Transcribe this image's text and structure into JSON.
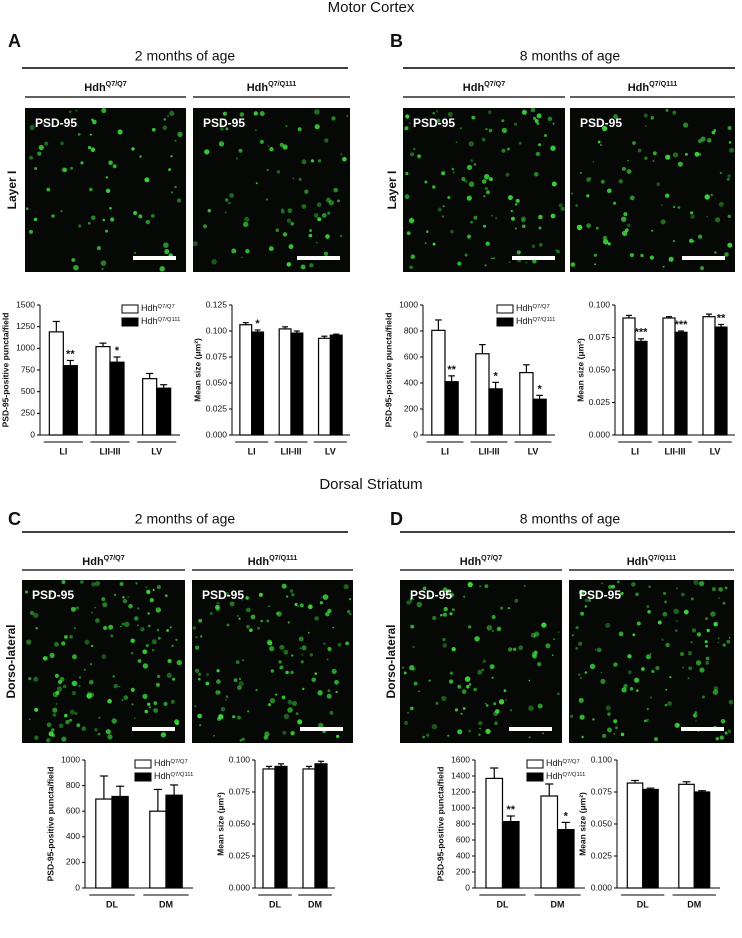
{
  "figure": {
    "sections": [
      {
        "title": "Motor Cortex"
      },
      {
        "title": "Dorsal Striatum"
      }
    ],
    "panels": [
      {
        "letter": "A",
        "age": "2 months of age",
        "region": "Layer I",
        "images": [
          {
            "genotype": "Hdh",
            "sup": "Q7/Q7",
            "stain": "PSD-95"
          },
          {
            "genotype": "Hdh",
            "sup": "Q7/Q111",
            "stain": "PSD-95"
          }
        ]
      },
      {
        "letter": "B",
        "age": "8 months of age",
        "region": "Layer I",
        "images": [
          {
            "genotype": "Hdh",
            "sup": "Q7/Q7",
            "stain": "PSD-95"
          },
          {
            "genotype": "Hdh",
            "sup": "Q7/Q111",
            "stain": "PSD-95"
          }
        ]
      },
      {
        "letter": "C",
        "age": "2 months of age",
        "region": "Dorso-lateral",
        "images": [
          {
            "genotype": "Hdh",
            "sup": "Q7/Q7",
            "stain": "PSD-95"
          },
          {
            "genotype": "Hdh",
            "sup": "Q7/Q111",
            "stain": "PSD-95"
          }
        ]
      },
      {
        "letter": "D",
        "age": "8 months of age",
        "region": "Dorso-lateral",
        "images": [
          {
            "genotype": "Hdh",
            "sup": "Q7/Q7",
            "stain": "PSD-95"
          },
          {
            "genotype": "Hdh",
            "sup": "Q7/Q111",
            "stain": "PSD-95"
          }
        ]
      }
    ]
  },
  "chart_data": [
    {
      "type": "bar",
      "ylabel": "PSD-95-positive puncta/field",
      "categories": [
        "LI",
        "LII-III",
        "LV"
      ],
      "series": [
        {
          "name": "Hdh",
          "name_sup": "Q7/Q7",
          "color": "#ffffff",
          "values": [
            1190,
            1020,
            650
          ],
          "errors": [
            120,
            40,
            60
          ],
          "stars": [
            null,
            null,
            null
          ]
        },
        {
          "name": "Hdh",
          "name_sup": "Q7/Q111",
          "color": "#000000",
          "values": [
            800,
            840,
            540
          ],
          "errors": [
            60,
            60,
            40
          ],
          "stars": [
            "**",
            "*",
            null
          ]
        }
      ],
      "ylim": [
        0,
        1500
      ],
      "yticks": [
        0,
        250,
        500,
        750,
        1000,
        1250,
        1500
      ],
      "legend": "top-right"
    },
    {
      "type": "bar",
      "ylabel": "Mean size (μm²)",
      "categories": [
        "LI",
        "LII-III",
        "LV"
      ],
      "series": [
        {
          "color": "#ffffff",
          "values": [
            0.106,
            0.102,
            0.093
          ],
          "errors": [
            0.002,
            0.002,
            0.002
          ],
          "stars": [
            null,
            null,
            null
          ]
        },
        {
          "color": "#000000",
          "values": [
            0.099,
            0.098,
            0.096
          ],
          "errors": [
            0.002,
            0.002,
            0.001
          ],
          "stars": [
            "*",
            null,
            null
          ]
        }
      ],
      "ylim": [
        0,
        0.125
      ],
      "yticks": [
        {
          "value": 0,
          "label": "0.000"
        },
        {
          "value": 0.025,
          "label": "0.025"
        },
        {
          "value": 0.05,
          "label": "0.050"
        },
        {
          "value": 0.075,
          "label": "0.075"
        },
        {
          "value": 0.1,
          "label": "0.100"
        },
        {
          "value": 0.125,
          "label": "0.125"
        }
      ]
    },
    {
      "type": "bar",
      "ylabel": "PSD-95-positive puncta/field",
      "categories": [
        "LI",
        "LII-III",
        "LV"
      ],
      "series": [
        {
          "name": "Hdh",
          "name_sup": "Q7/Q7",
          "color": "#ffffff",
          "values": [
            805,
            625,
            480
          ],
          "errors": [
            80,
            70,
            60
          ],
          "stars": [
            null,
            null,
            null
          ]
        },
        {
          "name": "Hdh",
          "name_sup": "Q7/Q111",
          "color": "#000000",
          "values": [
            410,
            355,
            275
          ],
          "errors": [
            45,
            50,
            30
          ],
          "stars": [
            "**",
            "*",
            "*"
          ]
        }
      ],
      "ylim": [
        0,
        1000
      ],
      "yticks": [
        0,
        200,
        400,
        600,
        800,
        1000
      ],
      "legend": "top-right"
    },
    {
      "type": "bar",
      "ylabel": "Mean size (μm²)",
      "categories": [
        "LI",
        "LII-III",
        "LV"
      ],
      "series": [
        {
          "color": "#ffffff",
          "values": [
            0.09,
            0.09,
            0.091
          ],
          "errors": [
            0.002,
            0.001,
            0.002
          ],
          "stars": [
            null,
            null,
            null
          ]
        },
        {
          "color": "#000000",
          "values": [
            0.072,
            0.079,
            0.083
          ],
          "errors": [
            0.002,
            0.001,
            0.002
          ],
          "stars": [
            "***",
            "***",
            "**"
          ]
        }
      ],
      "ylim": [
        0,
        0.1
      ],
      "yticks": [
        {
          "value": 0,
          "label": "0.000"
        },
        {
          "value": 0.025,
          "label": "0.025"
        },
        {
          "value": 0.05,
          "label": "0.050"
        },
        {
          "value": 0.075,
          "label": "0.075"
        },
        {
          "value": 0.1,
          "label": "0.100"
        }
      ]
    },
    {
      "type": "bar",
      "ylabel": "PSD-95-positive puncta/field",
      "categories": [
        "DL",
        "DM"
      ],
      "series": [
        {
          "name": "Hdh",
          "name_sup": "Q7/Q7",
          "color": "#ffffff",
          "values": [
            695,
            600
          ],
          "errors": [
            180,
            170
          ],
          "stars": [
            null,
            null
          ]
        },
        {
          "name": "Hdh",
          "name_sup": "Q7/Q111",
          "color": "#000000",
          "values": [
            715,
            725
          ],
          "errors": [
            80,
            80
          ],
          "stars": [
            null,
            null
          ]
        }
      ],
      "ylim": [
        0,
        1000
      ],
      "yticks": [
        0,
        200,
        400,
        600,
        800,
        1000
      ],
      "legend": "top-right"
    },
    {
      "type": "bar",
      "ylabel": "Mean size (μm²)",
      "categories": [
        "DL",
        "DM"
      ],
      "series": [
        {
          "color": "#ffffff",
          "values": [
            0.093,
            0.093
          ],
          "errors": [
            0.002,
            0.002
          ],
          "stars": [
            null,
            null
          ]
        },
        {
          "color": "#000000",
          "values": [
            0.095,
            0.097
          ],
          "errors": [
            0.002,
            0.002
          ],
          "stars": [
            null,
            null
          ]
        }
      ],
      "ylim": [
        0,
        0.1
      ],
      "yticks": [
        {
          "value": 0,
          "label": "0.000"
        },
        {
          "value": 0.025,
          "label": "0.025"
        },
        {
          "value": 0.05,
          "label": "0.050"
        },
        {
          "value": 0.075,
          "label": "0.075"
        },
        {
          "value": 0.1,
          "label": "0.100"
        }
      ]
    },
    {
      "type": "bar",
      "ylabel": "PSD-95-positive puncta/field",
      "categories": [
        "DL",
        "DM"
      ],
      "series": [
        {
          "name": "Hdh",
          "name_sup": "Q7/Q7",
          "color": "#ffffff",
          "values": [
            1370,
            1150
          ],
          "errors": [
            130,
            150
          ],
          "stars": [
            null,
            null
          ]
        },
        {
          "name": "Hdh",
          "name_sup": "Q7/Q111",
          "color": "#000000",
          "values": [
            830,
            730
          ],
          "errors": [
            70,
            90
          ],
          "stars": [
            "**",
            "*"
          ]
        }
      ],
      "ylim": [
        0,
        1600
      ],
      "yticks": [
        0,
        200,
        400,
        600,
        800,
        1000,
        1200,
        1400,
        1600
      ],
      "legend": "top-right"
    },
    {
      "type": "bar",
      "ylabel": "Mean size (μm²)",
      "categories": [
        "DL",
        "DM"
      ],
      "series": [
        {
          "color": "#ffffff",
          "values": [
            0.082,
            0.081
          ],
          "errors": [
            0.002,
            0.002
          ],
          "stars": [
            null,
            null
          ]
        },
        {
          "color": "#000000",
          "values": [
            0.077,
            0.075
          ],
          "errors": [
            0.001,
            0.001
          ],
          "stars": [
            null,
            null
          ]
        }
      ],
      "ylim": [
        0,
        0.1
      ],
      "yticks": [
        {
          "value": 0,
          "label": "0.000"
        },
        {
          "value": 0.025,
          "label": "0.025"
        },
        {
          "value": 0.05,
          "label": "0.050"
        },
        {
          "value": 0.075,
          "label": "0.075"
        },
        {
          "value": 0.1,
          "label": "0.100"
        }
      ]
    }
  ]
}
